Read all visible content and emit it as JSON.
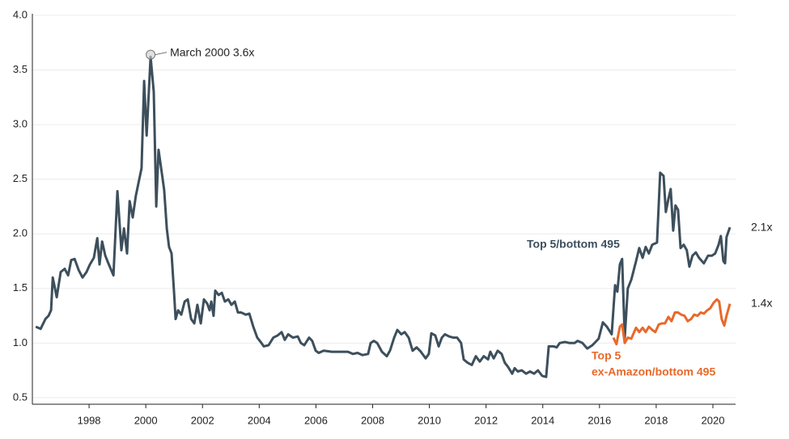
{
  "chart_data": {
    "type": "line",
    "xlim": [
      1996,
      2020.8
    ],
    "ylim": [
      0.44,
      4.0
    ],
    "xticks": [
      1998,
      2000,
      2002,
      2004,
      2006,
      2008,
      2010,
      2012,
      2014,
      2016,
      2018,
      2020
    ],
    "yticks": [
      0.5,
      {
        "value": 1,
        "label": "1.0"
      },
      1.5,
      {
        "value": 2,
        "label": "2.0"
      },
      2.5,
      {
        "value": 3,
        "label": "3.0"
      },
      3.5,
      {
        "value": 4,
        "label": "4.0"
      }
    ],
    "grid": true,
    "annotations": [
      {
        "text": "March 2000 3.6x",
        "x": 2000.17,
        "y": 3.64
      }
    ],
    "series": [
      {
        "name": "Top 5/bottom 495",
        "color": "#3d4f5c",
        "end_label": "2.1x",
        "x": [
          1996.12,
          1996.29,
          1996.46,
          1996.57,
          1996.66,
          1996.72,
          1996.86,
          1997.0,
          1997.14,
          1997.26,
          1997.37,
          1997.49,
          1997.63,
          1997.77,
          1997.91,
          1998.03,
          1998.17,
          1998.29,
          1998.37,
          1998.46,
          1998.57,
          1998.68,
          1998.86,
          1999.0,
          1999.14,
          1999.23,
          1999.34,
          1999.43,
          1999.54,
          1999.65,
          1999.85,
          1999.94,
          2000.03,
          2000.17,
          2000.28,
          2000.37,
          2000.45,
          2000.57,
          2000.65,
          2000.74,
          2000.82,
          2000.91,
          2001.0,
          2001.05,
          2001.14,
          2001.25,
          2001.37,
          2001.48,
          2001.6,
          2001.71,
          2001.82,
          2001.94,
          2002.05,
          2002.17,
          2002.25,
          2002.31,
          2002.39,
          2002.45,
          2002.57,
          2002.68,
          2002.79,
          2002.91,
          2003.02,
          2003.14,
          2003.25,
          2003.36,
          2003.53,
          2003.65,
          2003.79,
          2003.93,
          2004.08,
          2004.16,
          2004.33,
          2004.5,
          2004.65,
          2004.79,
          2004.9,
          2005.02,
          2005.19,
          2005.36,
          2005.47,
          2005.59,
          2005.76,
          2005.87,
          2005.99,
          2006.1,
          2006.27,
          2006.56,
          2006.84,
          2007.13,
          2007.3,
          2007.47,
          2007.64,
          2007.84,
          2007.93,
          2008.04,
          2008.16,
          2008.33,
          2008.5,
          2008.61,
          2008.76,
          2008.87,
          2009.01,
          2009.13,
          2009.27,
          2009.41,
          2009.55,
          2009.7,
          2009.87,
          2009.98,
          2010.07,
          2010.21,
          2010.33,
          2010.44,
          2010.55,
          2010.7,
          2010.84,
          2010.98,
          2011.12,
          2011.21,
          2011.35,
          2011.5,
          2011.64,
          2011.78,
          2011.92,
          2012.07,
          2012.15,
          2012.27,
          2012.41,
          2012.55,
          2012.66,
          2012.78,
          2012.92,
          2013.01,
          2013.12,
          2013.26,
          2013.41,
          2013.55,
          2013.69,
          2013.83,
          2013.98,
          2014.12,
          2014.21,
          2014.38,
          2014.49,
          2014.6,
          2014.78,
          2014.95,
          2015.12,
          2015.23,
          2015.4,
          2015.57,
          2015.75,
          2015.86,
          2015.97,
          2016.12,
          2016.26,
          2016.43,
          2016.55,
          2016.63,
          2016.72,
          2016.8,
          2016.89,
          2017.0,
          2017.12,
          2017.29,
          2017.4,
          2017.52,
          2017.63,
          2017.74,
          2017.86,
          2018.03,
          2018.14,
          2018.26,
          2018.34,
          2018.43,
          2018.51,
          2018.6,
          2018.68,
          2018.77,
          2018.86,
          2018.97,
          2019.08,
          2019.17,
          2019.28,
          2019.4,
          2019.51,
          2019.68,
          2019.83,
          2019.97,
          2020.08,
          2020.2,
          2020.28,
          2020.37,
          2020.43,
          2020.48,
          2020.6
        ],
        "values": [
          1.15,
          1.13,
          1.22,
          1.25,
          1.3,
          1.6,
          1.42,
          1.65,
          1.68,
          1.62,
          1.76,
          1.77,
          1.67,
          1.6,
          1.65,
          1.72,
          1.78,
          1.96,
          1.72,
          1.93,
          1.8,
          1.73,
          1.62,
          2.39,
          1.85,
          2.05,
          1.82,
          2.3,
          2.15,
          2.35,
          2.6,
          3.4,
          2.9,
          3.62,
          3.3,
          2.25,
          2.77,
          2.55,
          2.4,
          2.05,
          1.88,
          1.82,
          1.45,
          1.22,
          1.3,
          1.26,
          1.38,
          1.4,
          1.22,
          1.18,
          1.35,
          1.18,
          1.4,
          1.36,
          1.3,
          1.38,
          1.25,
          1.48,
          1.44,
          1.46,
          1.38,
          1.4,
          1.35,
          1.38,
          1.28,
          1.28,
          1.26,
          1.27,
          1.15,
          1.05,
          1.0,
          0.97,
          0.98,
          1.05,
          1.07,
          1.1,
          1.03,
          1.08,
          1.05,
          1.06,
          1.0,
          0.98,
          1.05,
          1.02,
          0.93,
          0.91,
          0.93,
          0.92,
          0.92,
          0.92,
          0.9,
          0.91,
          0.89,
          0.9,
          1.0,
          1.02,
          1.0,
          0.92,
          0.88,
          0.93,
          1.05,
          1.12,
          1.08,
          1.1,
          1.05,
          0.93,
          0.96,
          0.92,
          0.86,
          0.9,
          1.09,
          1.07,
          0.97,
          1.05,
          1.08,
          1.06,
          1.05,
          1.05,
          1.0,
          0.85,
          0.82,
          0.8,
          0.88,
          0.83,
          0.88,
          0.85,
          0.92,
          0.86,
          0.93,
          0.9,
          0.82,
          0.78,
          0.72,
          0.77,
          0.74,
          0.75,
          0.72,
          0.74,
          0.72,
          0.75,
          0.7,
          0.69,
          0.97,
          0.97,
          0.96,
          1.0,
          1.01,
          1.0,
          1.0,
          1.02,
          1.0,
          0.95,
          0.98,
          1.01,
          1.04,
          1.19,
          1.15,
          1.08,
          1.53,
          1.47,
          1.72,
          1.77,
          1.05,
          1.5,
          1.58,
          1.75,
          1.87,
          1.78,
          1.88,
          1.82,
          1.9,
          1.92,
          2.56,
          2.53,
          2.2,
          2.32,
          2.41,
          2.03,
          2.26,
          2.22,
          1.87,
          1.9,
          1.85,
          1.7,
          1.8,
          1.83,
          1.78,
          1.73,
          1.8,
          1.8,
          1.82,
          1.9,
          1.98,
          1.75,
          1.73,
          1.97,
          2.06
        ]
      },
      {
        "name": [
          "Top 5",
          "ex-Amazon/bottom 495"
        ],
        "color": "#e8692a",
        "end_label": "1.4x",
        "x": [
          2016.49,
          2016.6,
          2016.72,
          2016.8,
          2016.89,
          2017.0,
          2017.12,
          2017.29,
          2017.4,
          2017.52,
          2017.63,
          2017.74,
          2017.86,
          2017.97,
          2018.09,
          2018.2,
          2018.31,
          2018.43,
          2018.54,
          2018.66,
          2018.77,
          2018.88,
          2019.0,
          2019.11,
          2019.23,
          2019.34,
          2019.46,
          2019.57,
          2019.68,
          2019.8,
          2019.91,
          2020.03,
          2020.14,
          2020.22,
          2020.31,
          2020.4,
          2020.48,
          2020.6
        ],
        "values": [
          1.05,
          0.99,
          1.15,
          1.17,
          1.0,
          1.05,
          1.04,
          1.14,
          1.1,
          1.14,
          1.1,
          1.15,
          1.12,
          1.1,
          1.17,
          1.18,
          1.18,
          1.24,
          1.2,
          1.28,
          1.28,
          1.26,
          1.25,
          1.2,
          1.22,
          1.26,
          1.25,
          1.28,
          1.27,
          1.3,
          1.32,
          1.37,
          1.4,
          1.38,
          1.22,
          1.16,
          1.25,
          1.36
        ]
      }
    ]
  }
}
